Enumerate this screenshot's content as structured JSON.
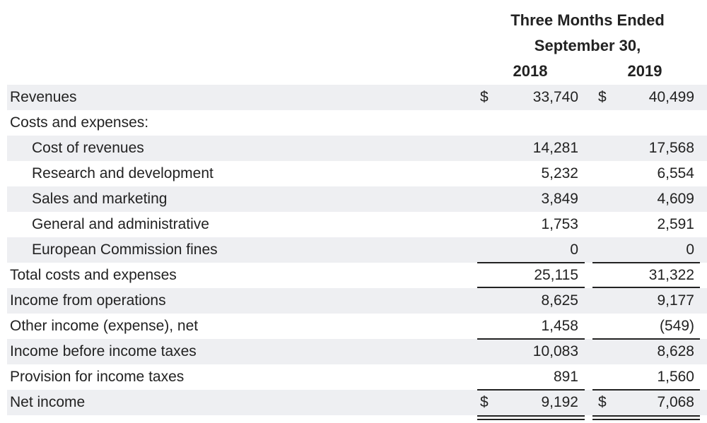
{
  "header": {
    "title": "Three Months Ended",
    "subtitle": "September 30,",
    "year1": "2018",
    "year2": "2019"
  },
  "rows": [
    {
      "label": "Revenues",
      "v2018": "33,740",
      "v2019": "40,499",
      "cur2018": "$",
      "cur2019": "$"
    },
    {
      "label": "Costs and expenses:",
      "v2018": "",
      "v2019": "",
      "cur2018": "",
      "cur2019": ""
    },
    {
      "label": "Cost of revenues",
      "v2018": "14,281",
      "v2019": "17,568",
      "cur2018": "",
      "cur2019": ""
    },
    {
      "label": "Research and development",
      "v2018": "5,232",
      "v2019": "6,554",
      "cur2018": "",
      "cur2019": ""
    },
    {
      "label": "Sales and marketing",
      "v2018": "3,849",
      "v2019": "4,609",
      "cur2018": "",
      "cur2019": ""
    },
    {
      "label": "General and administrative",
      "v2018": "1,753",
      "v2019": "2,591",
      "cur2018": "",
      "cur2019": ""
    },
    {
      "label": "European Commission fines",
      "v2018": "0",
      "v2019": "0",
      "cur2018": "",
      "cur2019": ""
    },
    {
      "label": "Total costs and expenses",
      "v2018": "25,115",
      "v2019": "31,322",
      "cur2018": "",
      "cur2019": ""
    },
    {
      "label": "Income from operations",
      "v2018": "8,625",
      "v2019": "9,177",
      "cur2018": "",
      "cur2019": ""
    },
    {
      "label": "Other income (expense), net",
      "v2018": "1,458",
      "v2019": "(549)",
      "cur2018": "",
      "cur2019": ""
    },
    {
      "label": "Income before income taxes",
      "v2018": "10,083",
      "v2019": "8,628",
      "cur2018": "",
      "cur2019": ""
    },
    {
      "label": "Provision for income taxes",
      "v2018": "891",
      "v2019": "1,560",
      "cur2018": "",
      "cur2019": ""
    },
    {
      "label": "Net income",
      "v2018": "9,192",
      "v2019": "7,068",
      "cur2018": "$",
      "cur2019": "$"
    }
  ]
}
